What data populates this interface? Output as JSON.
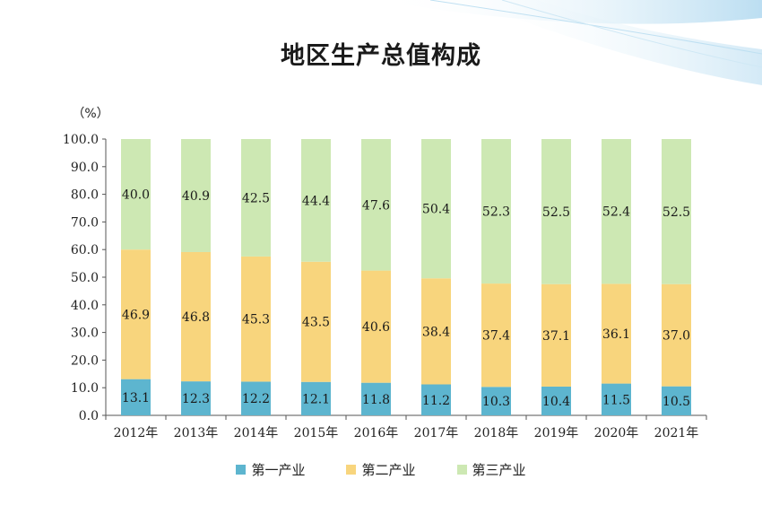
{
  "title": "地区生产总值构成",
  "unit_label": "（%）",
  "colors": {
    "primary": "#5db5cf",
    "secondary": "#f8d57d",
    "tertiary": "#cde8b3"
  },
  "chart_data": {
    "type": "bar",
    "stacked": true,
    "categories": [
      "2012年",
      "2013年",
      "2014年",
      "2015年",
      "2016年",
      "2017年",
      "2018年",
      "2019年",
      "2020年",
      "2021年"
    ],
    "series": [
      {
        "name": "第一产业",
        "values": [
          13.1,
          12.3,
          12.2,
          12.1,
          11.8,
          11.2,
          10.3,
          10.4,
          11.5,
          10.5
        ]
      },
      {
        "name": "第二产业",
        "values": [
          46.9,
          46.8,
          45.3,
          43.5,
          40.6,
          38.4,
          37.4,
          37.1,
          36.1,
          37.0
        ]
      },
      {
        "name": "第三产业",
        "values": [
          40.0,
          40.9,
          42.5,
          44.4,
          47.6,
          50.4,
          52.3,
          52.5,
          52.4,
          52.5
        ]
      }
    ],
    "ylim": [
      0,
      100
    ],
    "yticks": [
      "0.0",
      "10.0",
      "20.0",
      "30.0",
      "40.0",
      "50.0",
      "60.0",
      "70.0",
      "80.0",
      "90.0",
      "100.0"
    ],
    "legend_position": "bottom"
  }
}
